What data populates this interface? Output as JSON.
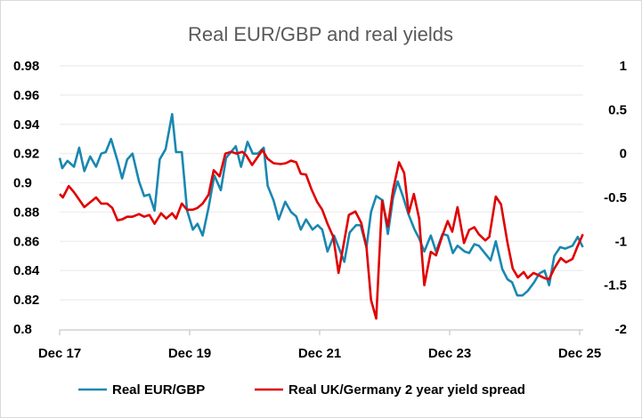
{
  "chart_data": {
    "type": "line",
    "title": "Real EUR/GBP and real yields",
    "xlabel": "",
    "ylabel_left": "",
    "ylabel_right": "",
    "x_ticks": [
      {
        "label": "Dec 17",
        "x": 2017.92
      },
      {
        "label": "Dec 19",
        "x": 2019.92
      },
      {
        "label": "Dec 21",
        "x": 2021.92
      },
      {
        "label": "Dec 23",
        "x": 2023.92
      },
      {
        "label": "Dec 25",
        "x": 2025.92
      }
    ],
    "xlim": [
      2017.92,
      2026.0
    ],
    "y_left": {
      "ylim": [
        0.8,
        0.98
      ],
      "ticks": [
        "0.8",
        "0.82",
        "0.84",
        "0.86",
        "0.88",
        "0.9",
        "0.92",
        "0.94",
        "0.96",
        "0.98"
      ]
    },
    "y_right": {
      "ylim": [
        -2,
        1
      ],
      "ticks": [
        "-2",
        "-1.5",
        "-1",
        "-0.5",
        "0",
        "0.5",
        "1"
      ]
    },
    "grid": true,
    "legend_position": "bottom",
    "series": [
      {
        "name": "Real EUR/GBP",
        "axis": "left",
        "color": "#1a87b0",
        "x": [
          2017.92,
          2017.96,
          2018.04,
          2018.14,
          2018.22,
          2018.3,
          2018.39,
          2018.48,
          2018.56,
          2018.63,
          2018.71,
          2018.81,
          2018.88,
          2018.96,
          2019.04,
          2019.14,
          2019.22,
          2019.3,
          2019.38,
          2019.46,
          2019.55,
          2019.65,
          2019.71,
          2019.8,
          2019.88,
          2019.97,
          2020.04,
          2020.12,
          2020.21,
          2020.3,
          2020.4,
          2020.48,
          2020.63,
          2020.71,
          2020.81,
          2020.89,
          2020.97,
          2021.06,
          2021.12,
          2021.21,
          2021.29,
          2021.39,
          2021.48,
          2021.56,
          2021.63,
          2021.71,
          2021.81,
          2021.89,
          2021.96,
          2022.04,
          2022.14,
          2022.3,
          2022.38,
          2022.48,
          2022.55,
          2022.64,
          2022.71,
          2022.79,
          2022.89,
          2022.97,
          2023.05,
          2023.12,
          2023.2,
          2023.29,
          2023.38,
          2023.45,
          2023.53,
          2023.63,
          2023.71,
          2023.81,
          2023.89,
          2023.97,
          2024.04,
          2024.15,
          2024.22,
          2024.3,
          2024.37,
          2024.55,
          2024.63,
          2024.73,
          2024.81,
          2024.88,
          2024.96,
          2025.04,
          2025.12,
          2025.22,
          2025.3,
          2025.38,
          2025.45,
          2025.53,
          2025.62,
          2025.7,
          2025.81,
          2025.89,
          2025.97
        ],
        "values": [
          0.917,
          0.91,
          0.915,
          0.911,
          0.924,
          0.908,
          0.918,
          0.911,
          0.92,
          0.921,
          0.93,
          0.915,
          0.903,
          0.916,
          0.92,
          0.901,
          0.891,
          0.892,
          0.881,
          0.916,
          0.923,
          0.947,
          0.921,
          0.921,
          0.881,
          0.868,
          0.872,
          0.864,
          0.883,
          0.905,
          0.895,
          0.917,
          0.925,
          0.911,
          0.928,
          0.92,
          0.92,
          0.924,
          0.898,
          0.888,
          0.875,
          0.887,
          0.88,
          0.877,
          0.868,
          0.875,
          0.868,
          0.871,
          0.868,
          0.853,
          0.864,
          0.846,
          0.866,
          0.871,
          0.871,
          0.856,
          0.88,
          0.891,
          0.888,
          0.865,
          0.89,
          0.901,
          0.891,
          0.878,
          0.868,
          0.862,
          0.853,
          0.864,
          0.853,
          0.865,
          0.864,
          0.852,
          0.857,
          0.853,
          0.852,
          0.858,
          0.857,
          0.847,
          0.86,
          0.841,
          0.834,
          0.832,
          0.823,
          0.823,
          0.826,
          0.832,
          0.838,
          0.84,
          0.83,
          0.85,
          0.856,
          0.855,
          0.857,
          0.863,
          0.856
        ]
      },
      {
        "name": "Real UK/Germany 2 year yield spread",
        "axis": "right",
        "color": "#e00000",
        "x": [
          2017.92,
          2017.97,
          2018.06,
          2018.14,
          2018.3,
          2018.48,
          2018.56,
          2018.65,
          2018.73,
          2018.81,
          2018.88,
          2018.96,
          2019.04,
          2019.14,
          2019.22,
          2019.3,
          2019.38,
          2019.48,
          2019.56,
          2019.65,
          2019.71,
          2019.8,
          2019.88,
          2019.97,
          2020.04,
          2020.12,
          2020.21,
          2020.29,
          2020.38,
          2020.47,
          2020.56,
          2020.64,
          2020.73,
          2020.79,
          2020.88,
          2021.04,
          2021.12,
          2021.21,
          2021.32,
          2021.4,
          2021.48,
          2021.56,
          2021.63,
          2021.71,
          2021.79,
          2021.88,
          2021.96,
          2022.04,
          2022.13,
          2022.21,
          2022.37,
          2022.47,
          2022.56,
          2022.64,
          2022.71,
          2022.79,
          2022.88,
          2022.97,
          2023.05,
          2023.14,
          2023.22,
          2023.29,
          2023.37,
          2023.45,
          2023.53,
          2023.63,
          2023.71,
          2023.81,
          2023.89,
          2023.96,
          2024.04,
          2024.14,
          2024.22,
          2024.3,
          2024.37,
          2024.47,
          2024.53,
          2024.63,
          2024.71,
          2024.81,
          2024.89,
          2024.97,
          2025.06,
          2025.12,
          2025.21,
          2025.3,
          2025.38,
          2025.45,
          2025.53,
          2025.63,
          2025.71,
          2025.81,
          2025.88,
          2025.97
        ],
        "values": [
          -0.46,
          -0.5,
          -0.37,
          -0.44,
          -0.61,
          -0.5,
          -0.57,
          -0.57,
          -0.62,
          -0.76,
          -0.75,
          -0.72,
          -0.72,
          -0.69,
          -0.72,
          -0.7,
          -0.8,
          -0.68,
          -0.74,
          -0.68,
          -0.74,
          -0.57,
          -0.64,
          -0.64,
          -0.62,
          -0.57,
          -0.47,
          -0.19,
          -0.26,
          0.0,
          0.02,
          0.0,
          0.02,
          -0.02,
          -0.13,
          0.04,
          -0.06,
          -0.11,
          -0.12,
          -0.11,
          -0.08,
          -0.1,
          -0.23,
          -0.24,
          -0.4,
          -0.55,
          -0.64,
          -0.8,
          -0.95,
          -1.36,
          -0.7,
          -0.66,
          -0.79,
          -1.07,
          -1.67,
          -1.88,
          -0.54,
          -0.83,
          -0.41,
          -0.1,
          -0.22,
          -0.68,
          -0.46,
          -0.74,
          -1.5,
          -1.12,
          -1.16,
          -0.93,
          -0.77,
          -0.89,
          -0.61,
          -1.02,
          -0.87,
          -0.84,
          -0.92,
          -0.99,
          -0.95,
          -0.49,
          -0.58,
          -1.02,
          -1.31,
          -1.41,
          -1.35,
          -1.42,
          -1.36,
          -1.39,
          -1.42,
          -1.43,
          -1.31,
          -1.19,
          -1.24,
          -1.2,
          -1.07,
          -0.92
        ]
      }
    ]
  }
}
